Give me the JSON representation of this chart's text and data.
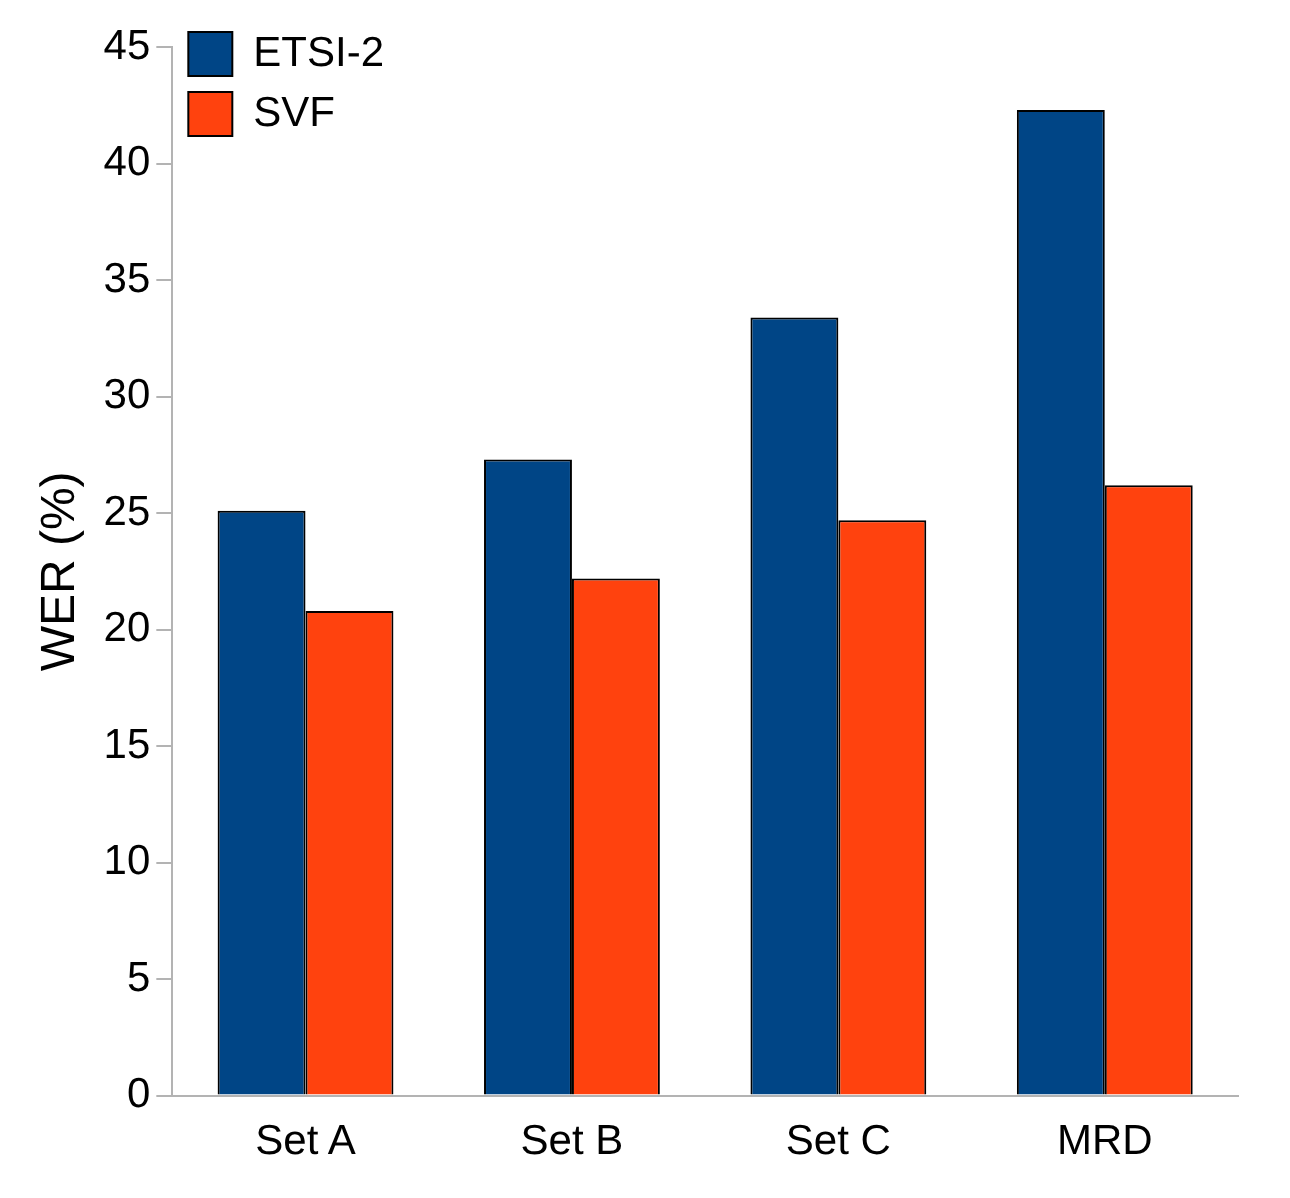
{
  "chart_data": {
    "type": "bar",
    "ylabel": "WER (%)",
    "categories": [
      "Set A",
      "Set B",
      "Set C",
      "MRD"
    ],
    "series": [
      {
        "name": "ETSI-2",
        "color": "#004586",
        "values": [
          25.1,
          27.3,
          33.4,
          42.3
        ]
      },
      {
        "name": "SVF",
        "color": "#ff420e",
        "values": [
          20.8,
          22.2,
          24.7,
          26.2
        ]
      }
    ],
    "ylim": [
      0,
      45
    ],
    "yticks": [
      0,
      5,
      10,
      15,
      20,
      25,
      30,
      35,
      40,
      45
    ],
    "grid": false,
    "legend": "top left"
  }
}
